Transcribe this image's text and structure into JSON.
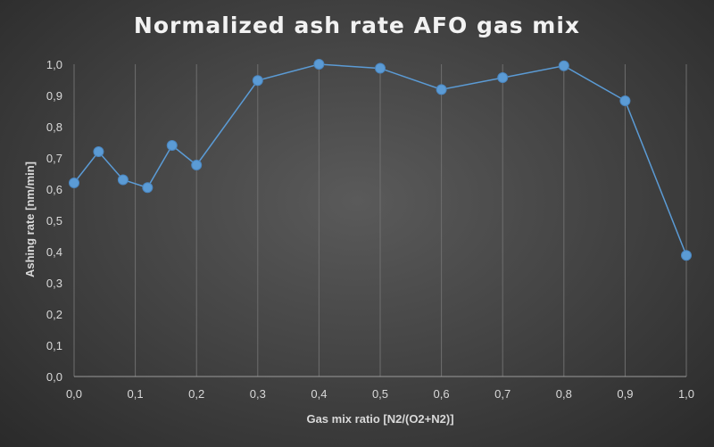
{
  "chart_data": {
    "type": "line",
    "title": "Normalized ash rate AFO gas mix",
    "xlabel": "Gas mix ratio [N2/(O2+N2)]",
    "ylabel": "Ashing rate [nm/min]",
    "xlim": [
      0,
      1
    ],
    "ylim": [
      0,
      1
    ],
    "x_ticks": [
      "0,0",
      "0,1",
      "0,2",
      "0,3",
      "0,4",
      "0,5",
      "0,6",
      "0,7",
      "0,8",
      "0,9",
      "1,0"
    ],
    "y_ticks": [
      "0,0",
      "0,1",
      "0,2",
      "0,3",
      "0,4",
      "0,5",
      "0,6",
      "0,7",
      "0,8",
      "0,9",
      "1,0"
    ],
    "grid": "vertical",
    "marker": "circle",
    "series": [
      {
        "color": "#5b9bd5",
        "points": [
          [
            0.0,
            0.62
          ],
          [
            0.04,
            0.72
          ],
          [
            0.08,
            0.63
          ],
          [
            0.12,
            0.605
          ],
          [
            0.16,
            0.74
          ],
          [
            0.2,
            0.677
          ],
          [
            0.3,
            0.948
          ],
          [
            0.4,
            1.0
          ],
          [
            0.5,
            0.987
          ],
          [
            0.6,
            0.919
          ],
          [
            0.7,
            0.957
          ],
          [
            0.8,
            0.995
          ],
          [
            0.9,
            0.883
          ],
          [
            1.0,
            0.388
          ]
        ]
      }
    ]
  }
}
